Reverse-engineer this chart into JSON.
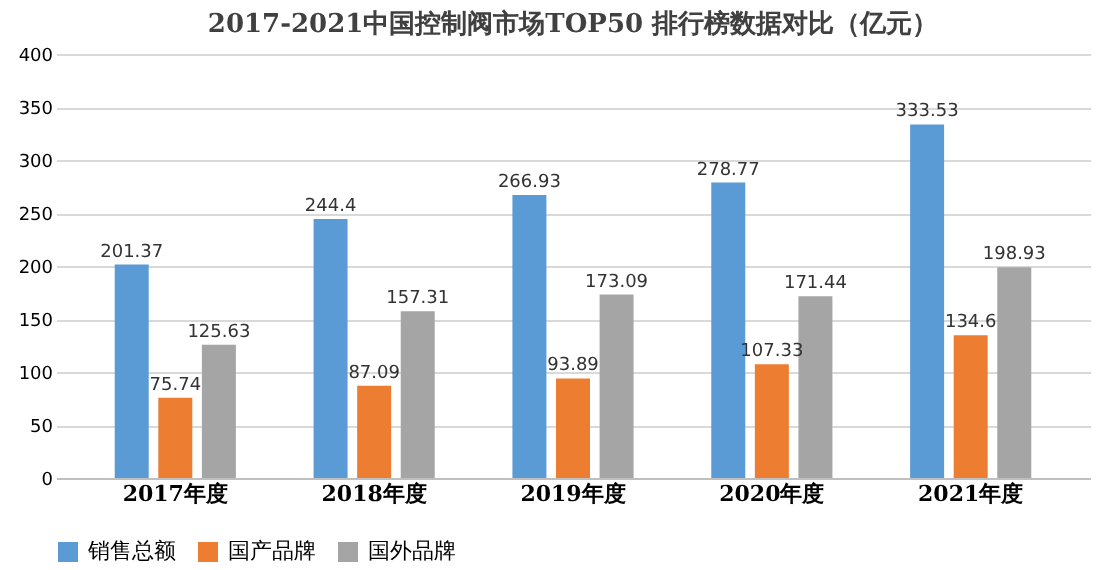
{
  "chart_data": {
    "type": "bar",
    "title": "2017-2021中国控制阀市场TOP50 排行榜数据对比（亿元）",
    "categories": [
      "2017年度",
      "2018年度",
      "2019年度",
      "2020年度",
      "2021年度"
    ],
    "series": [
      {
        "name": "销售总额",
        "color": "#5b9bd5",
        "values": [
          201.37,
          244.4,
          266.93,
          278.77,
          333.53
        ]
      },
      {
        "name": "国产品牌",
        "color": "#ed7d31",
        "values": [
          75.74,
          87.09,
          93.89,
          107.33,
          134.6
        ]
      },
      {
        "name": "国外品牌",
        "color": "#a5a5a5",
        "values": [
          125.63,
          157.31,
          173.09,
          171.44,
          198.93
        ]
      }
    ],
    "ylim": [
      0,
      400
    ],
    "yticks": [
      0,
      50,
      100,
      150,
      200,
      250,
      300,
      350,
      400
    ],
    "grid": "y",
    "legend": "bottom",
    "data_labels": true
  }
}
